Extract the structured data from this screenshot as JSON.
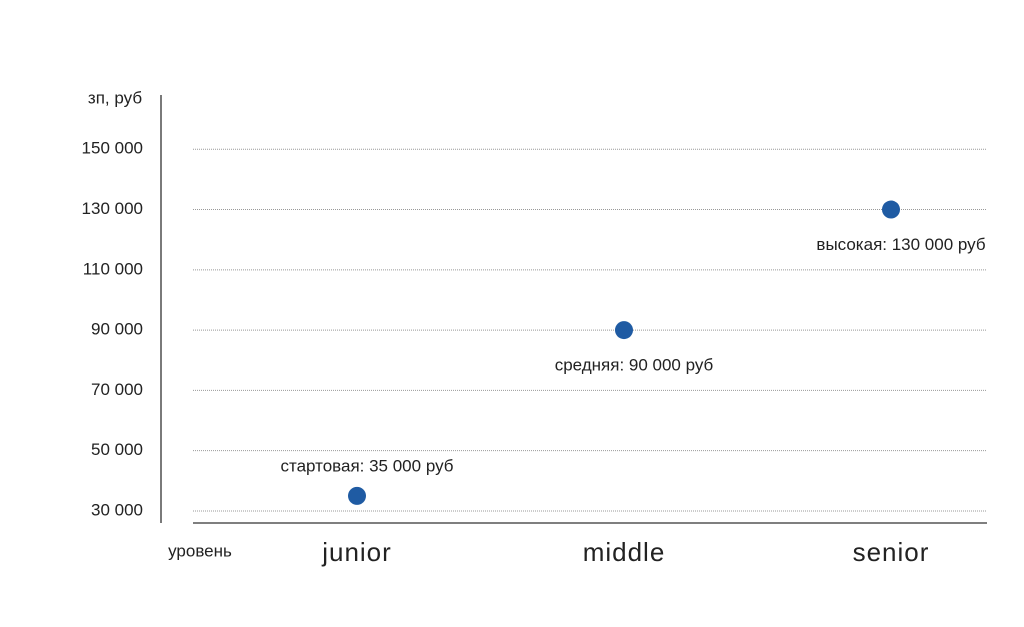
{
  "chart_data": {
    "type": "scatter",
    "y_label": "зп, руб",
    "x_label": "уровень",
    "categories": [
      "junior",
      "middle",
      "senior"
    ],
    "values": [
      35000,
      90000,
      130000
    ],
    "value_labels": [
      "стартовая: 35 000 руб",
      "средняя: 90 000 руб",
      "высокая: 130 000 руб"
    ],
    "color": "#1f5ba3",
    "ylim": [
      26000,
      168000
    ],
    "yticks": [
      {
        "value": 30000,
        "label": "30 000"
      },
      {
        "value": 50000,
        "label": "50 000"
      },
      {
        "value": 70000,
        "label": "70 000"
      },
      {
        "value": 90000,
        "label": "90 000"
      },
      {
        "value": 110000,
        "label": "110 000"
      },
      {
        "value": 130000,
        "label": "130 000"
      },
      {
        "value": 150000,
        "label": "150 000"
      }
    ],
    "grid": true
  }
}
